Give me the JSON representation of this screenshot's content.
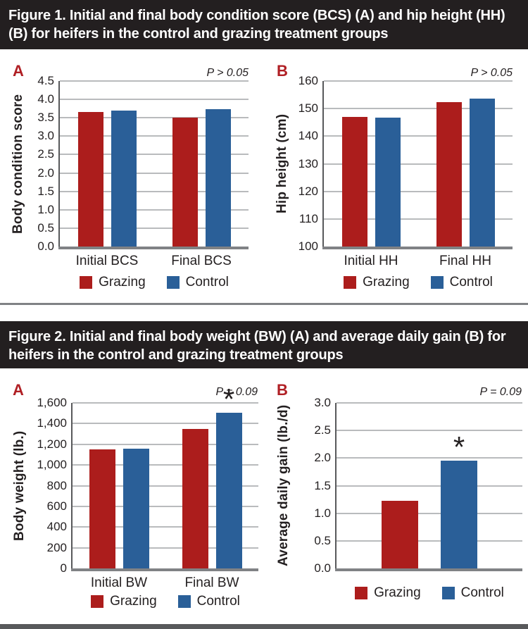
{
  "figure1": {
    "title": "Figure 1. Initial and final body condition score (BCS) (A) and hip height (HH) (B) for heifers in the control and grazing treatment groups"
  },
  "figure2": {
    "title": "Figure 2. Initial and final body weight (BW) (A) and average daily gain (B) for heifers in the control and grazing treatment groups"
  },
  "colors": {
    "grazing_red": "#AC1D1C",
    "control_blue": "#2A5F98",
    "panel_letter_red": "#B01F24",
    "header_bg": "#231F20",
    "divider_gray": "#808285",
    "footer_gray": "#58595B",
    "gridline_gray": "#B9BBBD"
  },
  "chart_data": [
    {
      "figure": "Figure 1",
      "panel": "A",
      "type": "bar",
      "p_label": "P > 0.05",
      "ylabel": "Body condition score",
      "categories": [
        "Initial BCS",
        "Final BCS"
      ],
      "series": [
        {
          "name": "Grazing",
          "color": "#AC1D1C",
          "values": [
            3.65,
            3.5
          ]
        },
        {
          "name": "Control",
          "color": "#2A5F98",
          "values": [
            3.7,
            3.73
          ]
        }
      ],
      "ylim": [
        0,
        4.5
      ],
      "ytick_step": 0.5,
      "ytick_labels": [
        "0.0",
        "0.5",
        "1.0",
        "1.5",
        "2.0",
        "2.5",
        "3.0",
        "3.5",
        "4.0",
        "4.5"
      ],
      "grid": true,
      "legend_position": "bottom",
      "annotations": []
    },
    {
      "figure": "Figure 1",
      "panel": "B",
      "type": "bar",
      "p_label": "P > 0.05",
      "ylabel": "Hip height (cm)",
      "categories": [
        "Initial HH",
        "Final HH"
      ],
      "series": [
        {
          "name": "Grazing",
          "color": "#AC1D1C",
          "values": [
            147,
            152.4
          ]
        },
        {
          "name": "Control",
          "color": "#2A5F98",
          "values": [
            146.7,
            153.6
          ]
        }
      ],
      "ylim": [
        100,
        160
      ],
      "ytick_step": 10,
      "ytick_labels": [
        "100",
        "110",
        "120",
        "130",
        "140",
        "150",
        "160"
      ],
      "grid": true,
      "legend_position": "bottom",
      "annotations": []
    },
    {
      "figure": "Figure 2",
      "panel": "A",
      "type": "bar",
      "p_label": "P = 0.09",
      "ylabel": "Body weight (lb.)",
      "categories": [
        "Initial BW",
        "Final BW"
      ],
      "series": [
        {
          "name": "Grazing",
          "color": "#AC1D1C",
          "values": [
            1150,
            1350
          ]
        },
        {
          "name": "Control",
          "color": "#2A5F98",
          "values": [
            1155,
            1505
          ]
        }
      ],
      "ylim": [
        0,
        1600
      ],
      "ytick_step": 200,
      "ytick_labels": [
        "0",
        "200",
        "400",
        "600",
        "800",
        "1,000",
        "1,200",
        "1,400",
        "1,600"
      ],
      "grid": true,
      "legend_position": "bottom",
      "annotations": [
        {
          "series_index": 1,
          "category_index": 1,
          "series": "Control",
          "category": "Final BW",
          "text": "*"
        }
      ]
    },
    {
      "figure": "Figure 2",
      "panel": "B",
      "type": "bar",
      "p_label": "P = 0.09",
      "ylabel": "Average daily gain (lb./d)",
      "categories": [
        ""
      ],
      "series": [
        {
          "name": "Grazing",
          "color": "#AC1D1C",
          "values": [
            1.22
          ]
        },
        {
          "name": "Control",
          "color": "#2A5F98",
          "values": [
            1.95
          ]
        }
      ],
      "ylim": [
        0,
        3
      ],
      "ytick_step": 0.5,
      "ytick_labels": [
        "0.0",
        "0.5",
        "1.0",
        "1.5",
        "2.0",
        "2.5",
        "3.0"
      ],
      "grid": true,
      "legend_position": "bottom",
      "annotations": [
        {
          "series_index": 1,
          "category_index": 0,
          "series": "Control",
          "text": "*"
        }
      ]
    }
  ]
}
